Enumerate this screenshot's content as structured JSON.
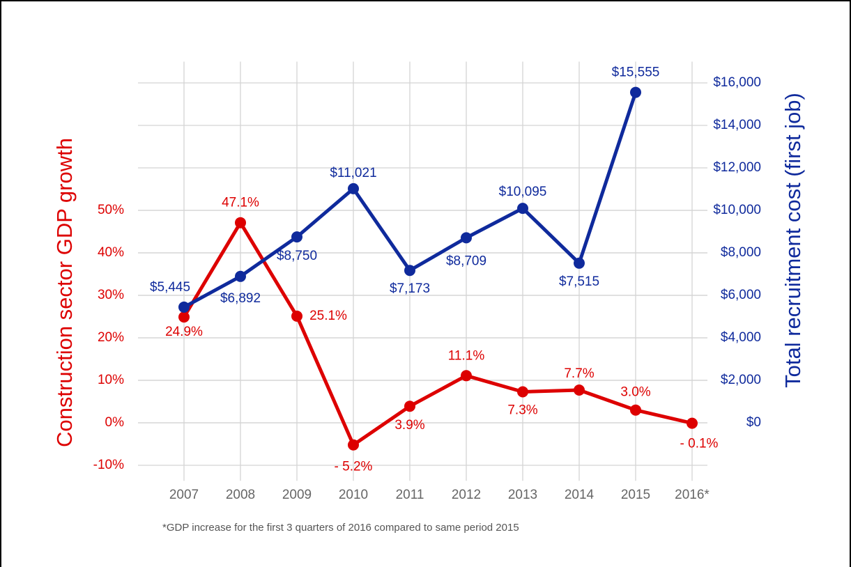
{
  "chart_data": {
    "type": "line",
    "categories": [
      "2007",
      "2008",
      "2009",
      "2010",
      "2011",
      "2012",
      "2013",
      "2014",
      "2015",
      "2016*"
    ],
    "series": [
      {
        "name": "Construction sector GDP growth",
        "color": "#dd0000",
        "axis": "y",
        "values": [
          24.9,
          47.1,
          25.1,
          -5.2,
          3.9,
          11.1,
          7.3,
          7.7,
          3.0,
          -0.1
        ],
        "value_labels": [
          "24.9%",
          "47.1%",
          "25.1%",
          "- 5.2%",
          "3.9%",
          "11.1%",
          "7.3%",
          "7.7%",
          "3.0%",
          "- 0.1%"
        ]
      },
      {
        "name": "Total recruitment cost (first job)",
        "color": "#0f2a9c",
        "axis": "y2",
        "values": [
          5445,
          6892,
          8750,
          11021,
          7173,
          8709,
          10095,
          7515,
          15555,
          null
        ],
        "value_labels": [
          "$5,445",
          "$6,892",
          "$8,750",
          "$11,021",
          "$7,173",
          "$8,709",
          "$10,095",
          "$7,515",
          "$15,555",
          null
        ]
      }
    ],
    "ylabel": "Construction sector GDP growth",
    "y2label": "Total recruitment cost (first job)",
    "ylim": [
      -13,
      85
    ],
    "yticks": [
      {
        "value": -10,
        "label": "-10%"
      },
      {
        "value": 0,
        "label": "0%"
      },
      {
        "value": 10,
        "label": "10%"
      },
      {
        "value": 20,
        "label": "20%"
      },
      {
        "value": 30,
        "label": "30%"
      },
      {
        "value": 40,
        "label": "40%"
      },
      {
        "value": 50,
        "label": "50%"
      }
    ],
    "y2lim": [
      -2600,
      17000
    ],
    "y2ticks": [
      {
        "value": 0,
        "label": "$0"
      },
      {
        "value": 2000,
        "label": "$2,000"
      },
      {
        "value": 4000,
        "label": "$4,000"
      },
      {
        "value": 6000,
        "label": "$6,000"
      },
      {
        "value": 8000,
        "label": "$8,000"
      },
      {
        "value": 10000,
        "label": "$10,000"
      },
      {
        "value": 12000,
        "label": "$12,000"
      },
      {
        "value": 14000,
        "label": "$14,000"
      },
      {
        "value": 16000,
        "label": "$16,000"
      }
    ],
    "grid": true,
    "footnote": "*GDP increase for the first 3 quarters of 2016 compared to same period 2015"
  }
}
